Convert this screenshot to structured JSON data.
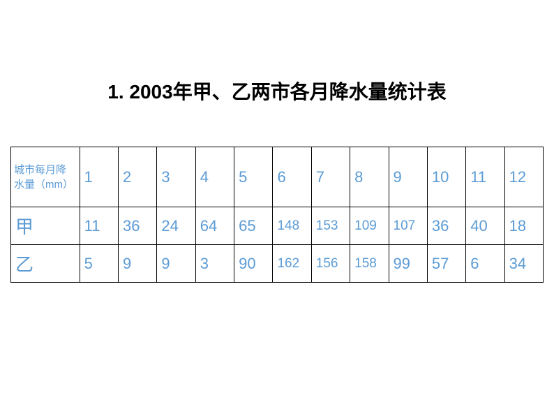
{
  "title": "1. 2003年甲、乙两市各月降水量统计表",
  "table": {
    "header_label": "城市每月降水量（mm）",
    "months": [
      "1",
      "2",
      "3",
      "4",
      "5",
      "6",
      "7",
      "8",
      "9",
      "10",
      "11",
      "12"
    ],
    "rows": [
      {
        "label": "甲",
        "values": [
          "11",
          "36",
          "24",
          "64",
          "65",
          "148",
          "153",
          "109",
          "107",
          "36",
          "40",
          "18"
        ]
      },
      {
        "label": "乙",
        "values": [
          "5",
          "9",
          "9",
          "3",
          "90",
          "162",
          "156",
          "158",
          "99",
          "57",
          "6",
          "34"
        ]
      }
    ],
    "colors": {
      "text_color": "#5b9bd5",
      "border_color": "#000000",
      "title_color": "#000000",
      "background": "#ffffff"
    },
    "font_sizes": {
      "title": 28,
      "header": 15,
      "month": 22,
      "row_label": 26,
      "data_large": 22,
      "data_small": 19
    }
  }
}
